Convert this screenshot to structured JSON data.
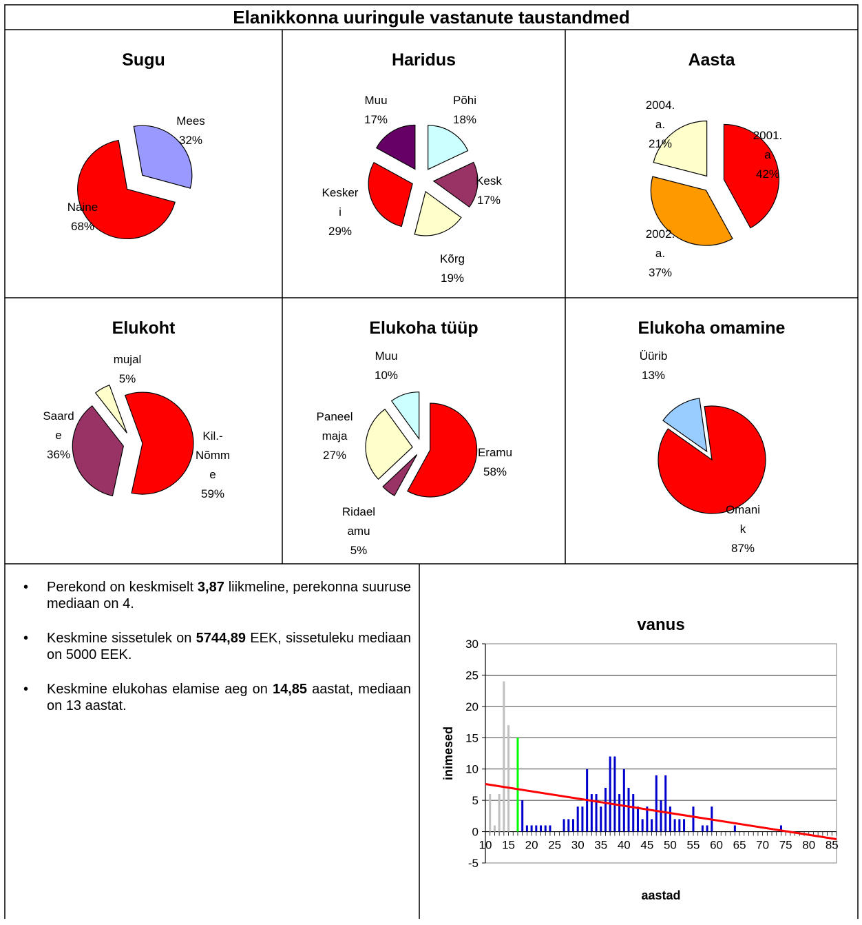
{
  "header": {
    "title": "Elanikkonna uuringule  vastanute taustandmed"
  },
  "stats": [
    {
      "pre": "Perekond on keskmiselt ",
      "value": "3,87",
      "post": " liikmeline, perekonna suuruse mediaan on 4."
    },
    {
      "pre": "Keskmine sissetulek on ",
      "value": "5744,89",
      "post": " EEK, sissetuleku mediaan on 5000 EEK."
    },
    {
      "pre": "Keskmine elukohas elamise aeg on ",
      "value": "14,85",
      "post": " aastat, mediaan on 13 aastat."
    }
  ],
  "chart_data": [
    {
      "type": "pie",
      "title": "Sugu",
      "slices": [
        {
          "label": [
            "Mees",
            "32%"
          ],
          "value": 32,
          "color": "#9999ff"
        },
        {
          "label": [
            "Naine",
            "68%"
          ],
          "value": 68,
          "color": "#ff0000"
        }
      ]
    },
    {
      "type": "pie",
      "title": "Haridus",
      "slices": [
        {
          "label": [
            "Põhi",
            "18%"
          ],
          "value": 18,
          "color": "#ccffff"
        },
        {
          "label": [
            "Kesk",
            "17%"
          ],
          "value": 17,
          "color": "#993366"
        },
        {
          "label": [
            "Kõrg",
            "19%"
          ],
          "value": 19,
          "color": "#ffffcc"
        },
        {
          "label": [
            "Kesker",
            "i",
            "29%"
          ],
          "value": 29,
          "color": "#ff0000"
        },
        {
          "label": [
            "Muu",
            "17%"
          ],
          "value": 17,
          "color": "#660066"
        }
      ]
    },
    {
      "type": "pie",
      "title": "Aasta",
      "slices": [
        {
          "label": [
            "2001.",
            "a",
            "42%"
          ],
          "value": 42,
          "color": "#ff0000"
        },
        {
          "label": [
            "2002.",
            "a.",
            "37%"
          ],
          "value": 37,
          "color": "#ff9900"
        },
        {
          "label": [
            "2004.",
            "a.",
            "21%"
          ],
          "value": 21,
          "color": "#ffffcc"
        }
      ]
    },
    {
      "type": "pie",
      "title": "Elukoht",
      "slices": [
        {
          "label": [
            "Kil.-",
            "Nõmm",
            "e",
            "59%"
          ],
          "value": 59,
          "color": "#ff0000"
        },
        {
          "label": [
            "Saard",
            "e",
            "36%"
          ],
          "value": 36,
          "color": "#993366"
        },
        {
          "label": [
            "mujal",
            "5%"
          ],
          "value": 5,
          "color": "#ffffcc"
        }
      ]
    },
    {
      "type": "pie",
      "title": "Elukoha tüüp",
      "slices": [
        {
          "label": [
            "Eramu",
            "58%"
          ],
          "value": 58,
          "color": "#ff0000"
        },
        {
          "label": [
            "Ridael",
            "amu",
            "5%"
          ],
          "value": 5,
          "color": "#993366"
        },
        {
          "label": [
            "Paneel",
            "maja",
            "27%"
          ],
          "value": 27,
          "color": "#ffffcc"
        },
        {
          "label": [
            "Muu",
            "10%"
          ],
          "value": 10,
          "color": "#ccffff"
        }
      ]
    },
    {
      "type": "pie",
      "title": "Elukoha omamine",
      "slices": [
        {
          "label": [
            "Omani",
            "k",
            "87%"
          ],
          "value": 87,
          "color": "#ff0000"
        },
        {
          "label": [
            "Üürib",
            "13%"
          ],
          "value": 13,
          "color": "#99ccff"
        }
      ]
    },
    {
      "type": "bar",
      "title": "vanus",
      "xlabel": "aastad",
      "ylabel": "inimesed",
      "ylim": [
        -5,
        30
      ],
      "yticks": [
        -5,
        0,
        5,
        10,
        15,
        20,
        25,
        30
      ],
      "xlim": [
        10,
        86
      ],
      "xticks": [
        10,
        15,
        20,
        25,
        30,
        35,
        40,
        45,
        50,
        55,
        60,
        65,
        70,
        75,
        80,
        85
      ],
      "grid": true,
      "legend": "none",
      "colors": {
        "under_17": "#c0c0c0",
        "age_17": "#00ff00",
        "adult": "#0000cc",
        "trend": "#ff0000"
      },
      "x": [
        11,
        12,
        13,
        14,
        15,
        16,
        17,
        18,
        19,
        20,
        21,
        22,
        23,
        24,
        25,
        27,
        28,
        29,
        30,
        31,
        32,
        33,
        34,
        35,
        36,
        37,
        38,
        39,
        40,
        41,
        42,
        43,
        44,
        45,
        46,
        47,
        48,
        49,
        50,
        51,
        52,
        53,
        55,
        57,
        58,
        59,
        64,
        74
      ],
      "values": [
        6,
        1,
        6,
        24,
        17,
        0,
        15,
        5,
        1,
        1,
        1,
        1,
        1,
        1,
        0,
        2,
        2,
        2,
        4,
        4,
        10,
        6,
        6,
        4,
        7,
        12,
        12,
        6,
        10,
        7,
        6,
        4,
        2,
        4,
        2,
        9,
        5,
        9,
        4,
        2,
        2,
        2,
        4,
        1,
        1,
        4,
        1,
        1
      ],
      "trendline": {
        "x": [
          10,
          86
        ],
        "y": [
          7.6,
          -1.2
        ]
      }
    }
  ]
}
